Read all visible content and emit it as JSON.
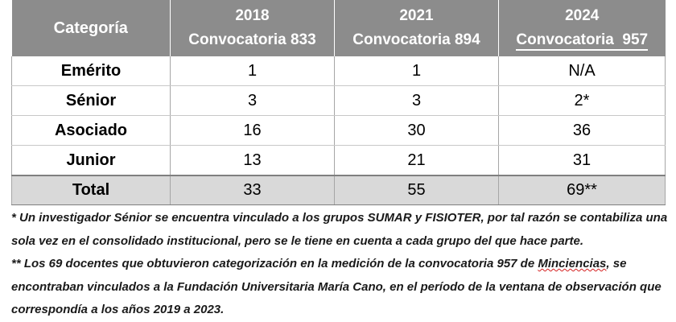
{
  "table": {
    "header": {
      "category": "Categoría",
      "columns": [
        {
          "year": "2018",
          "call": "Convocatoria 833"
        },
        {
          "year": "2021",
          "call": "Convocatoria 894"
        },
        {
          "year": "2024",
          "call": "Convocatoria  957"
        }
      ]
    },
    "rows": [
      {
        "category": "Emérito",
        "values": [
          "1",
          "1",
          "N/A"
        ]
      },
      {
        "category": "Sénior",
        "values": [
          "3",
          "3",
          "2*"
        ]
      },
      {
        "category": "Asociado",
        "values": [
          "16",
          "30",
          "36"
        ]
      },
      {
        "category": "Junior",
        "values": [
          "13",
          "21",
          "31"
        ]
      }
    ],
    "total": {
      "category": "Total",
      "values": [
        "33",
        "55",
        "69**"
      ]
    }
  },
  "notes": {
    "note1": "* Un investigador Sénior se encuentra vinculado a los grupos SUMAR y FISIOTER, por tal razón se contabiliza una sola vez en el consolidado institucional, pero se le tiene en cuenta a cada grupo del que hace parte.",
    "note2_before": "** Los 69 docentes que obtuvieron categorización en la medición de la convocatoria 957 de ",
    "note2_word": "Minciencias",
    "note2_after": ", se encontraban vinculados a la Fundación Universitaria María Cano, en el período de la ventana de observación que correspondía a los años 2019 a 2023."
  },
  "colors": {
    "header_bg": "#8c8c8c",
    "total_bg": "#d9d9d9",
    "spellcheck": "#d42020"
  }
}
